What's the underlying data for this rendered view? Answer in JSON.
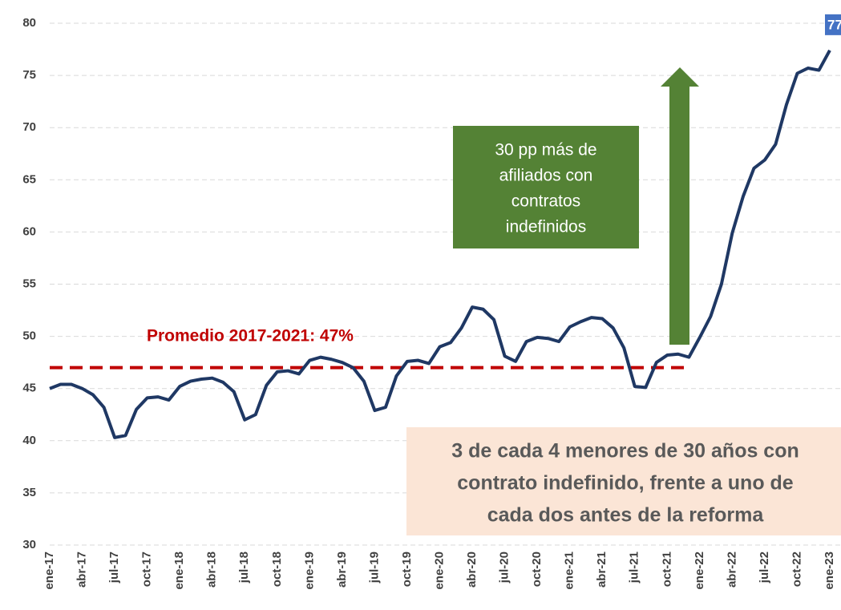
{
  "chart_data": {
    "type": "line",
    "categories": [
      "ene-17",
      null,
      null,
      "abr-17",
      null,
      null,
      "jul-17",
      null,
      null,
      "oct-17",
      null,
      null,
      "ene-18",
      null,
      null,
      "abr-18",
      null,
      null,
      "jul-18",
      null,
      null,
      "oct-18",
      null,
      null,
      "ene-19",
      null,
      null,
      "abr-19",
      null,
      null,
      "jul-19",
      null,
      null,
      "oct-19",
      null,
      null,
      "ene-20",
      null,
      null,
      "abr-20",
      null,
      null,
      "jul-20",
      null,
      null,
      "oct-20",
      null,
      null,
      "ene-21",
      null,
      null,
      "abr-21",
      null,
      null,
      "jul-21",
      null,
      null,
      "oct-21",
      null,
      null,
      "ene-22",
      null,
      null,
      "abr-22",
      null,
      null,
      "jul-22",
      null,
      null,
      "oct-22",
      null,
      null,
      "ene-23"
    ],
    "series": [
      {
        "color": "#1f3864",
        "values": [
          45.0,
          45.4,
          45.4,
          45.0,
          44.4,
          43.2,
          40.3,
          40.5,
          43.0,
          44.1,
          44.2,
          43.9,
          45.2,
          45.7,
          45.9,
          46.0,
          45.6,
          44.7,
          42.0,
          42.5,
          45.3,
          46.6,
          46.7,
          46.4,
          47.7,
          48.0,
          47.8,
          47.5,
          47.0,
          45.7,
          42.9,
          43.2,
          46.2,
          47.6,
          47.7,
          47.4,
          49.0,
          49.4,
          50.8,
          52.8,
          52.6,
          51.6,
          48.1,
          47.6,
          49.5,
          49.9,
          49.8,
          49.5,
          50.9,
          51.4,
          51.8,
          51.7,
          50.8,
          48.9,
          45.2,
          45.1,
          47.5,
          48.2,
          48.3,
          48.0,
          49.9,
          51.9,
          55.0,
          59.9,
          63.4,
          66.1,
          66.9,
          68.4,
          72.2,
          75.2,
          75.7,
          75.5,
          77.4
        ],
        "value_labels": [
          null,
          null,
          null,
          null,
          null,
          null,
          null,
          null,
          null,
          null,
          null,
          null,
          null,
          null,
          null,
          null,
          null,
          null,
          null,
          null,
          null,
          null,
          null,
          null,
          null,
          null,
          null,
          null,
          null,
          null,
          null,
          null,
          null,
          null,
          null,
          null,
          null,
          null,
          null,
          null,
          null,
          null,
          null,
          null,
          null,
          null,
          null,
          null,
          null,
          null,
          null,
          null,
          null,
          null,
          null,
          null,
          null,
          null,
          null,
          null,
          null,
          null,
          null,
          null,
          null,
          null,
          null,
          null,
          null,
          null,
          null,
          null,
          "77"
        ]
      }
    ],
    "ylim": [
      30,
      80
    ],
    "yticks": [
      30,
      35,
      40,
      45,
      50,
      55,
      60,
      65,
      70,
      75,
      80
    ],
    "grid": true,
    "reference": {
      "value": 47,
      "label": "Promedio 2017-2021: 47%",
      "color": "#c00000"
    },
    "arrow_box": {
      "lines": [
        "30 pp más de",
        "afiliados con",
        "contratos",
        "indefinidos"
      ],
      "color": "#548235"
    },
    "note_box": {
      "lines": [
        "3 de cada 4 menores de 30 años con",
        "contrato indefinido, frente a uno de",
        "cada dos antes de la reforma"
      ],
      "color": "#fbe5d6"
    }
  }
}
